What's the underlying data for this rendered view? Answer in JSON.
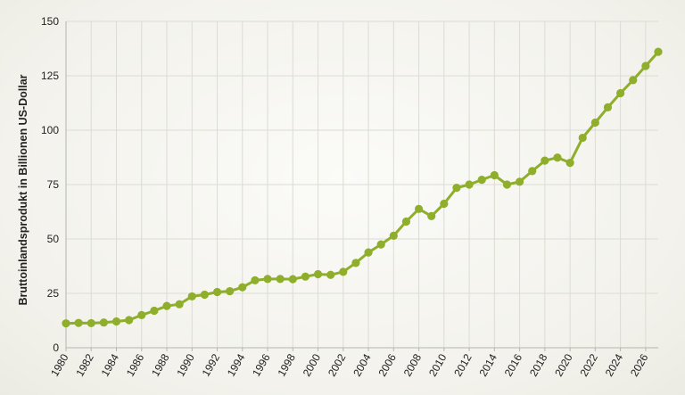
{
  "chart_data": {
    "type": "line",
    "title": "",
    "xlabel": "",
    "ylabel": "Bruttoinlandsprodukt in Billionen US-Dollar",
    "xlim": [
      1980,
      2027
    ],
    "ylim": [
      0,
      150
    ],
    "x_ticks": [
      "1980",
      "1982",
      "1984",
      "1986",
      "1988",
      "1990",
      "1992",
      "1994",
      "1996",
      "1998",
      "2000",
      "2002",
      "2004",
      "2006",
      "2008",
      "2010",
      "2012",
      "2014",
      "2016",
      "2018",
      "2020",
      "2022",
      "2024",
      "2026"
    ],
    "y_ticks": [
      0,
      25,
      50,
      75,
      100,
      125,
      150
    ],
    "grid": true,
    "legend": "none",
    "colors": {
      "series": "#8fae2b",
      "grid": "#dcdcd4"
    },
    "series": [
      {
        "x": [
          1980,
          1981,
          1982,
          1983,
          1984,
          1985,
          1986,
          1987,
          1988,
          1989,
          1990,
          1991,
          1992,
          1993,
          1994,
          1995,
          1996,
          1997,
          1998,
          1999,
          2000,
          2001,
          2002,
          2003,
          2004,
          2005,
          2006,
          2007,
          2008,
          2009,
          2010,
          2011,
          2012,
          2013,
          2014,
          2015,
          2016,
          2017,
          2018,
          2019,
          2020,
          2021,
          2022,
          2023,
          2024,
          2025,
          2026,
          2027
        ],
        "values": [
          11.2,
          11.4,
          11.3,
          11.6,
          12.1,
          12.7,
          15.0,
          17.0,
          19.2,
          20.0,
          23.6,
          24.4,
          25.6,
          26.0,
          27.8,
          31.0,
          31.6,
          31.6,
          31.5,
          32.7,
          33.8,
          33.5,
          34.9,
          39.0,
          43.8,
          47.5,
          51.5,
          58.0,
          63.8,
          60.5,
          66.2,
          73.5,
          75.0,
          77.2,
          79.3,
          75.0,
          76.3,
          81.2,
          86.0,
          87.4,
          85.0,
          96.5,
          103.5,
          110.5,
          117.0,
          123.0,
          129.5,
          136.0
        ]
      }
    ]
  }
}
